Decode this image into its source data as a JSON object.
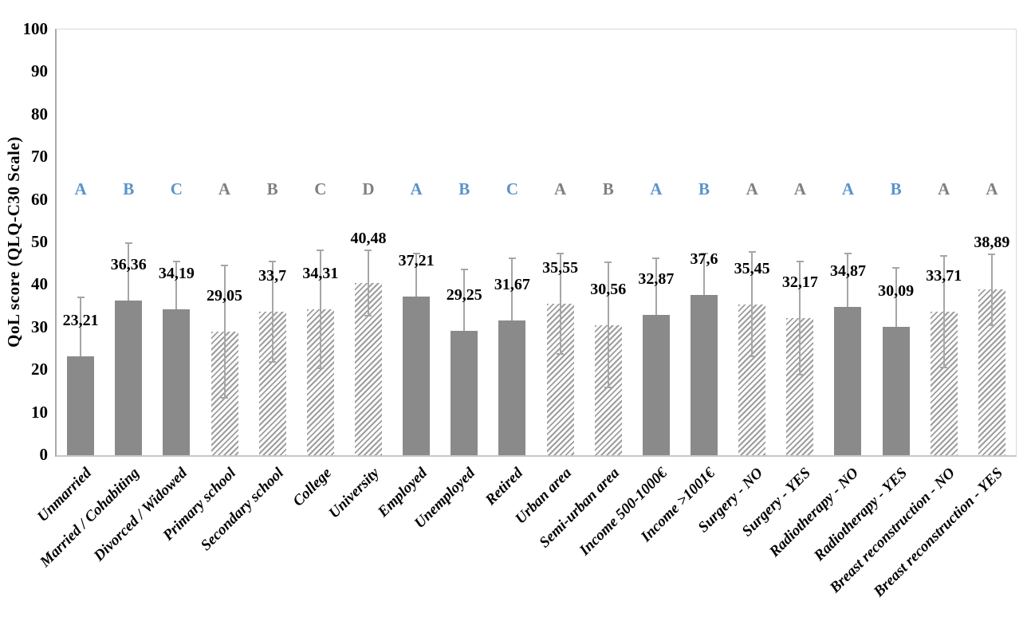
{
  "chart_data": {
    "type": "bar",
    "title": "",
    "xlabel": "",
    "ylabel": "QoL score (QLQ-C30  Scale)",
    "ylim": [
      0,
      100
    ],
    "ytick_step": 10,
    "grid": false,
    "legend": "none",
    "categories": [
      "Unmarried",
      "Married / Cohabiting",
      "Divorced / Widowed",
      "Primary school",
      "Secondary school",
      "College",
      "University",
      "Employed",
      "Unemployed",
      "Retired",
      "Urban area",
      "Semi-urban area",
      "Income 500-1000€",
      "Income >1001€",
      "Surgery - NO",
      "Surgery - YES",
      "Radiotherapy - NO",
      "Radiotherapy - YES",
      "Breast reconstruction - NO",
      "Breast reconstruction - YES"
    ],
    "values": [
      23.21,
      36.36,
      34.19,
      29.05,
      33.7,
      34.31,
      40.48,
      37.21,
      29.25,
      31.67,
      35.55,
      30.56,
      32.87,
      37.6,
      35.45,
      32.17,
      34.87,
      30.09,
      33.71,
      38.89
    ],
    "value_labels": [
      "23,21",
      "36,36",
      "34,19",
      "29,05",
      "33,7",
      "34,31",
      "40,48",
      "37,21",
      "29,25",
      "31,67",
      "35,55",
      "30,56",
      "32,87",
      "37,6",
      "35,45",
      "32,17",
      "34,87",
      "30,09",
      "33,71",
      "38,89"
    ],
    "error_bars_estimated": [
      14.1,
      13.6,
      11.5,
      15.7,
      12.0,
      14.0,
      7.8,
      10.4,
      14.6,
      14.8,
      12.0,
      14.9,
      13.6,
      10.0,
      12.5,
      13.5,
      12.7,
      14.1,
      13.3,
      8.5
    ],
    "significance_letters": [
      "A",
      "B",
      "C",
      "A",
      "B",
      "C",
      "D",
      "A",
      "B",
      "C",
      "A",
      "B",
      "A",
      "B",
      "A",
      "A",
      "A",
      "B",
      "A",
      "A"
    ],
    "letter_colors": [
      "blue",
      "blue",
      "blue",
      "gray",
      "gray",
      "gray",
      "gray",
      "blue",
      "blue",
      "blue",
      "gray",
      "gray",
      "blue",
      "blue",
      "gray",
      "gray",
      "blue",
      "blue",
      "gray",
      "gray"
    ],
    "bar_styles": [
      "solid",
      "solid",
      "solid",
      "hatched",
      "hatched",
      "hatched",
      "hatched",
      "solid",
      "solid",
      "solid",
      "hatched",
      "hatched",
      "solid",
      "solid",
      "hatched",
      "hatched",
      "solid",
      "solid",
      "hatched",
      "hatched"
    ],
    "colors": {
      "solid_bar": "#8a8a8a",
      "hatch_line": "#9d9d9d",
      "hatch_background": "#ffffff",
      "error_bar": "#a6a6a6",
      "letter_blue": "#5b93cc",
      "letter_gray": "#808080",
      "axis_text": "#000000"
    }
  }
}
